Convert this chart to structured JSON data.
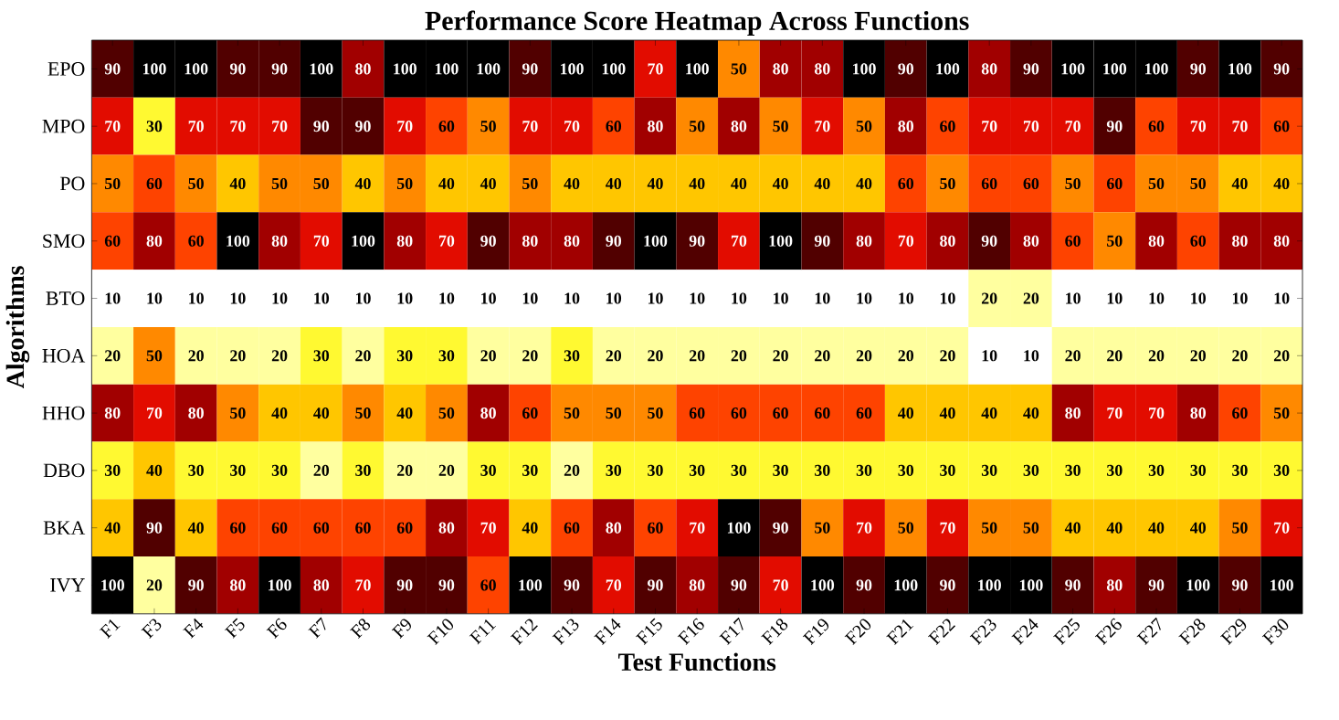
{
  "chart_data": {
    "type": "heatmap",
    "title": "Performance Score Heatmap Across Functions",
    "xlabel": "Test Functions",
    "ylabel": "Algorithms",
    "categories": [
      "F1",
      "F3",
      "F4",
      "F5",
      "F6",
      "F7",
      "F8",
      "F9",
      "F10",
      "F11",
      "F12",
      "F13",
      "F14",
      "F15",
      "F16",
      "F17",
      "F18",
      "F19",
      "F20",
      "F21",
      "F22",
      "F23",
      "F24",
      "F25",
      "F26",
      "F27",
      "F28",
      "F29",
      "F30"
    ],
    "y_categories": [
      "EPO",
      "MPO",
      "PO",
      "SMO",
      "BTO",
      "HOA",
      "HHO",
      "DBO",
      "BKA",
      "IVY"
    ],
    "cells": [
      [
        90,
        100,
        100,
        90,
        90,
        100,
        80,
        100,
        100,
        100,
        90,
        100,
        100,
        70,
        100,
        50,
        80,
        80,
        100,
        90,
        100,
        80,
        90,
        100,
        100,
        100,
        90,
        100,
        90
      ],
      [
        70,
        30,
        70,
        70,
        70,
        90,
        90,
        70,
        60,
        50,
        70,
        70,
        60,
        80,
        50,
        80,
        50,
        70,
        50,
        80,
        60,
        70,
        70,
        70,
        90,
        60,
        70,
        70,
        60
      ],
      [
        50,
        60,
        50,
        40,
        50,
        50,
        40,
        50,
        40,
        40,
        50,
        40,
        40,
        40,
        40,
        40,
        40,
        40,
        40,
        60,
        50,
        60,
        60,
        50,
        60,
        50,
        50,
        40,
        40
      ],
      [
        60,
        80,
        60,
        100,
        80,
        70,
        100,
        80,
        70,
        90,
        80,
        80,
        90,
        100,
        90,
        70,
        100,
        90,
        80,
        70,
        80,
        90,
        80,
        60,
        50,
        80,
        60,
        80,
        80
      ],
      [
        10,
        10,
        10,
        10,
        10,
        10,
        10,
        10,
        10,
        10,
        10,
        10,
        10,
        10,
        10,
        10,
        10,
        10,
        10,
        10,
        10,
        20,
        20,
        10,
        10,
        10,
        10,
        10,
        10
      ],
      [
        20,
        50,
        20,
        20,
        20,
        30,
        20,
        30,
        30,
        20,
        20,
        30,
        20,
        20,
        20,
        20,
        20,
        20,
        20,
        20,
        20,
        10,
        10,
        20,
        20,
        20,
        20,
        20,
        20
      ],
      [
        80,
        70,
        80,
        50,
        40,
        40,
        50,
        40,
        50,
        80,
        60,
        50,
        50,
        50,
        60,
        60,
        60,
        60,
        60,
        40,
        40,
        40,
        40,
        80,
        70,
        70,
        80,
        60,
        50
      ],
      [
        30,
        40,
        30,
        30,
        30,
        20,
        30,
        20,
        20,
        30,
        30,
        20,
        30,
        30,
        30,
        30,
        30,
        30,
        30,
        30,
        30,
        30,
        30,
        30,
        30,
        30,
        30,
        30,
        30
      ],
      [
        40,
        90,
        40,
        60,
        60,
        60,
        60,
        60,
        80,
        70,
        40,
        60,
        80,
        60,
        70,
        100,
        90,
        50,
        70,
        50,
        70,
        50,
        50,
        40,
        40,
        40,
        40,
        50,
        70
      ],
      [
        100,
        20,
        90,
        80,
        100,
        80,
        70,
        90,
        90,
        60,
        100,
        90,
        70,
        90,
        80,
        90,
        70,
        100,
        90,
        100,
        90,
        100,
        100,
        90,
        80,
        90,
        100,
        90,
        100
      ]
    ],
    "data_labels": true
  }
}
